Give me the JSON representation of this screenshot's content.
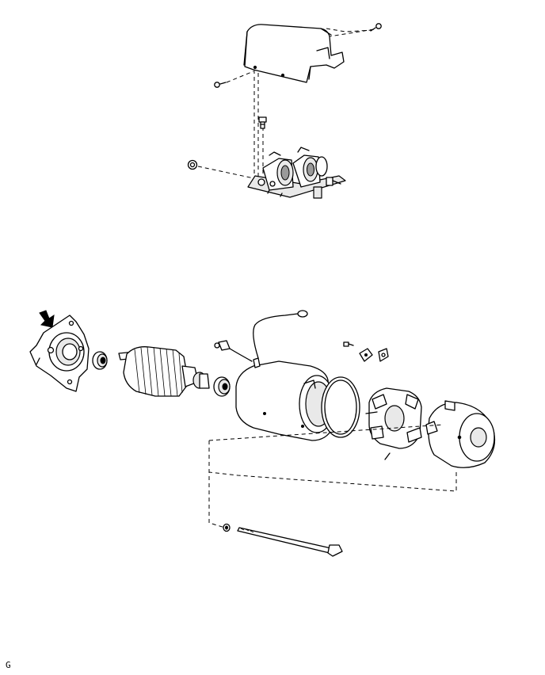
{
  "figure": {
    "caption": "G",
    "colors": {
      "line": "#000000",
      "background": "#ffffff",
      "shade": "#9a9a9a"
    }
  }
}
